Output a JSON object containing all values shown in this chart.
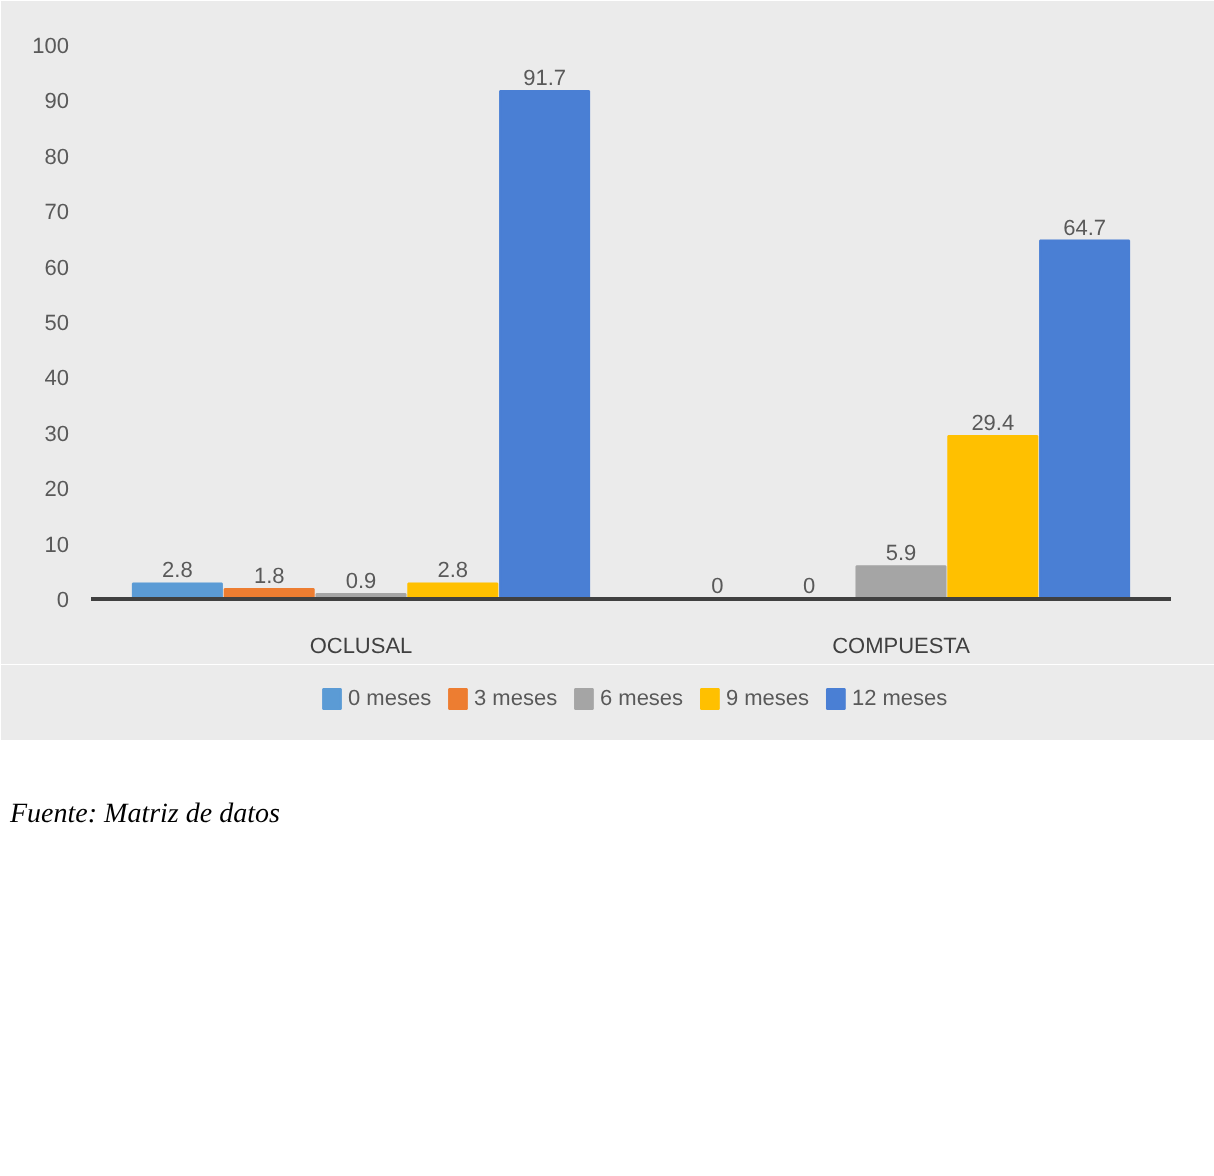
{
  "chart_data": {
    "type": "bar",
    "categories": [
      "OCLUSAL",
      "COMPUESTA"
    ],
    "series": [
      {
        "name": "0 meses",
        "color": "#5b9bd5",
        "values": [
          2.8,
          0
        ]
      },
      {
        "name": "3 meses",
        "color": "#ed7d31",
        "values": [
          1.8,
          0
        ]
      },
      {
        "name": "6 meses",
        "color": "#a5a5a5",
        "values": [
          0.9,
          5.9
        ]
      },
      {
        "name": "9 meses",
        "color": "#ffc000",
        "values": [
          2.8,
          29.4
        ]
      },
      {
        "name": "12 meses",
        "color": "#4a7fd4",
        "values": [
          91.7,
          64.7
        ]
      }
    ],
    "ylim": [
      0,
      100
    ],
    "yticks": [
      0,
      10,
      20,
      30,
      40,
      50,
      60,
      70,
      80,
      90,
      100
    ],
    "legend": "bottom",
    "data_labels": true,
    "annotations": [
      "Fuente: Matriz de datos"
    ]
  }
}
